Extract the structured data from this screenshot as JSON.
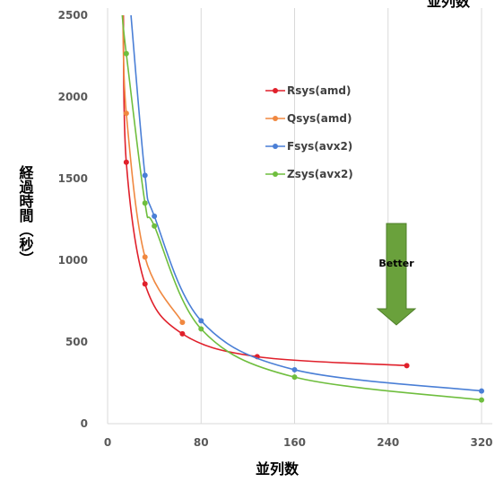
{
  "chart_data": {
    "type": "scatter",
    "title": "並列数",
    "xlabel": "並列数",
    "ylabel": "経過時間（秒）",
    "xlim": [
      0,
      320
    ],
    "ylim": [
      0,
      2500
    ],
    "x_ticks": [
      "0",
      "80",
      "160",
      "240",
      "320"
    ],
    "y_ticks": [
      "0",
      "500",
      "1000",
      "1500",
      "2000",
      "2500"
    ],
    "grid": "vertical",
    "legend_position": "top-right",
    "annotation": "Better",
    "series": [
      {
        "name": "Rsys(amd)",
        "color": "#e0202b",
        "points": [
          [
            16,
            1600
          ],
          [
            32,
            855
          ],
          [
            64,
            550
          ],
          [
            128,
            410
          ],
          [
            256,
            355
          ]
        ]
      },
      {
        "name": "Qsys(amd)",
        "color": "#f08840",
        "points": [
          [
            16,
            1900
          ],
          [
            32,
            1020
          ],
          [
            64,
            620
          ]
        ]
      },
      {
        "name": "Fsys(avx2)",
        "color": "#4a7fd6",
        "points": [
          [
            32,
            1520
          ],
          [
            40,
            1270
          ],
          [
            80,
            630
          ],
          [
            160,
            330
          ],
          [
            320,
            200
          ]
        ]
      },
      {
        "name": "Zsys(avx2)",
        "color": "#6fbe3e",
        "points": [
          [
            16,
            2265
          ],
          [
            32,
            1350
          ],
          [
            40,
            1210
          ],
          [
            80,
            580
          ],
          [
            160,
            285
          ],
          [
            320,
            145
          ]
        ]
      }
    ]
  }
}
